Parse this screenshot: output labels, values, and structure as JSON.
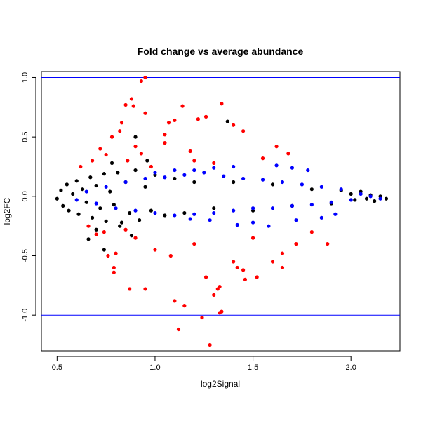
{
  "chart_data": {
    "type": "scatter",
    "title": "Fold change vs average abundance",
    "xlabel": "log2Signal",
    "ylabel": "log2FC",
    "xlim": [
      0.42,
      2.25
    ],
    "ylim": [
      -1.3,
      1.05
    ],
    "xticks": [
      {
        "value": 0.5,
        "label": "0.5"
      },
      {
        "value": 1.0,
        "label": "1.0"
      },
      {
        "value": 1.5,
        "label": "1.5"
      },
      {
        "value": 2.0,
        "label": "2.0"
      }
    ],
    "yticks": [
      {
        "value": -1.0,
        "label": "-1.0"
      },
      {
        "value": -0.5,
        "label": "-0.5"
      },
      {
        "value": 0.0,
        "label": "0.0"
      },
      {
        "value": 0.5,
        "label": "0.5"
      },
      {
        "value": 1.0,
        "label": "1.0"
      }
    ],
    "reference_lines": [
      {
        "axis": "y",
        "value": 1.0,
        "color": "#0000ff"
      },
      {
        "axis": "y",
        "value": -1.0,
        "color": "#0000ff"
      }
    ],
    "grid": false,
    "legend": "none",
    "series": [
      {
        "color": "#000000",
        "points": [
          [
            0.5,
            -0.02
          ],
          [
            0.52,
            0.05
          ],
          [
            0.53,
            -0.08
          ],
          [
            0.55,
            0.1
          ],
          [
            0.56,
            -0.12
          ],
          [
            0.58,
            0.02
          ],
          [
            0.6,
            0.13
          ],
          [
            0.61,
            -0.15
          ],
          [
            0.63,
            0.06
          ],
          [
            0.65,
            -0.05
          ],
          [
            0.67,
            0.16
          ],
          [
            0.68,
            -0.18
          ],
          [
            0.7,
            0.09
          ],
          [
            0.72,
            -0.1
          ],
          [
            0.74,
            0.19
          ],
          [
            0.75,
            -0.21
          ],
          [
            0.77,
            0.04
          ],
          [
            0.79,
            -0.07
          ],
          [
            0.81,
            0.2
          ],
          [
            0.83,
            -0.22
          ],
          [
            0.85,
            0.12
          ],
          [
            0.87,
            -0.14
          ],
          [
            0.9,
            0.22
          ],
          [
            0.92,
            -0.2
          ],
          [
            0.95,
            0.08
          ],
          [
            0.98,
            -0.12
          ],
          [
            1.0,
            0.18
          ],
          [
            1.05,
            -0.16
          ],
          [
            1.1,
            0.15
          ],
          [
            1.15,
            -0.14
          ],
          [
            1.2,
            0.12
          ],
          [
            1.3,
            -0.1
          ],
          [
            1.37,
            0.63
          ],
          [
            1.4,
            0.12
          ],
          [
            1.5,
            -0.12
          ],
          [
            1.6,
            0.1
          ],
          [
            1.7,
            -0.08
          ],
          [
            1.8,
            0.06
          ],
          [
            1.9,
            -0.06
          ],
          [
            1.95,
            0.05
          ],
          [
            2.0,
            0.02
          ],
          [
            2.02,
            -0.03
          ],
          [
            2.05,
            0.04
          ],
          [
            2.08,
            -0.02
          ],
          [
            2.1,
            0.01
          ],
          [
            2.12,
            -0.04
          ],
          [
            2.15,
            0.0
          ],
          [
            2.18,
            -0.02
          ],
          [
            0.7,
            -0.28
          ],
          [
            0.78,
            0.28
          ],
          [
            0.88,
            -0.33
          ],
          [
            0.96,
            0.3
          ],
          [
            0.74,
            -0.45
          ],
          [
            0.66,
            -0.36
          ],
          [
            0.9,
            0.5
          ],
          [
            0.82,
            -0.25
          ]
        ]
      },
      {
        "color": "#ff0000",
        "points": [
          [
            0.95,
            1.0
          ],
          [
            0.93,
            0.97
          ],
          [
            0.88,
            0.82
          ],
          [
            0.85,
            0.77
          ],
          [
            0.89,
            0.76
          ],
          [
            0.95,
            0.7
          ],
          [
            1.14,
            0.76
          ],
          [
            1.22,
            0.65
          ],
          [
            1.26,
            0.67
          ],
          [
            1.34,
            0.78
          ],
          [
            1.1,
            0.64
          ],
          [
            1.07,
            0.62
          ],
          [
            0.83,
            0.62
          ],
          [
            0.78,
            0.5
          ],
          [
            0.82,
            0.55
          ],
          [
            0.72,
            0.4
          ],
          [
            0.68,
            0.3
          ],
          [
            0.75,
            0.35
          ],
          [
            0.9,
            0.42
          ],
          [
            1.05,
            0.45
          ],
          [
            1.18,
            0.38
          ],
          [
            1.45,
            0.55
          ],
          [
            1.55,
            0.32
          ],
          [
            1.62,
            0.42
          ],
          [
            1.68,
            0.36
          ],
          [
            1.3,
            0.28
          ],
          [
            1.2,
            0.3
          ],
          [
            0.98,
            0.25
          ],
          [
            0.62,
            0.25
          ],
          [
            0.66,
            -0.25
          ],
          [
            0.7,
            -0.32
          ],
          [
            0.74,
            -0.3
          ],
          [
            0.76,
            -0.5
          ],
          [
            0.8,
            -0.48
          ],
          [
            0.79,
            -0.6
          ],
          [
            0.79,
            -0.64
          ],
          [
            0.87,
            -0.78
          ],
          [
            0.95,
            -0.78
          ],
          [
            1.0,
            -0.45
          ],
          [
            1.08,
            -0.5
          ],
          [
            1.1,
            -0.88
          ],
          [
            1.15,
            -0.92
          ],
          [
            1.12,
            -1.12
          ],
          [
            1.24,
            -1.02
          ],
          [
            1.28,
            -1.25
          ],
          [
            1.33,
            -0.98
          ],
          [
            1.34,
            -0.97
          ],
          [
            1.3,
            -0.83
          ],
          [
            1.32,
            -0.78
          ],
          [
            1.33,
            -0.76
          ],
          [
            1.26,
            -0.68
          ],
          [
            1.4,
            -0.55
          ],
          [
            1.42,
            -0.6
          ],
          [
            1.45,
            -0.62
          ],
          [
            1.46,
            -0.7
          ],
          [
            1.52,
            -0.68
          ],
          [
            1.6,
            -0.55
          ],
          [
            1.65,
            -0.6
          ],
          [
            1.65,
            -0.48
          ],
          [
            1.72,
            -0.4
          ],
          [
            1.8,
            -0.3
          ],
          [
            1.88,
            -0.4
          ],
          [
            1.5,
            -0.35
          ],
          [
            1.2,
            -0.4
          ],
          [
            0.9,
            -0.35
          ],
          [
            0.85,
            -0.28
          ],
          [
            1.4,
            0.6
          ],
          [
            1.05,
            0.52
          ],
          [
            0.93,
            0.36
          ],
          [
            0.86,
            0.3
          ]
        ]
      },
      {
        "color": "#0000ff",
        "points": [
          [
            0.6,
            -0.03
          ],
          [
            0.65,
            0.04
          ],
          [
            0.7,
            -0.06
          ],
          [
            0.75,
            0.08
          ],
          [
            0.8,
            -0.1
          ],
          [
            0.85,
            0.12
          ],
          [
            0.9,
            -0.12
          ],
          [
            0.95,
            0.15
          ],
          [
            1.0,
            -0.14
          ],
          [
            1.05,
            0.16
          ],
          [
            1.1,
            -0.16
          ],
          [
            1.15,
            0.18
          ],
          [
            1.2,
            -0.15
          ],
          [
            1.25,
            0.2
          ],
          [
            1.3,
            -0.14
          ],
          [
            1.35,
            0.17
          ],
          [
            1.4,
            -0.12
          ],
          [
            1.45,
            0.15
          ],
          [
            1.5,
            -0.1
          ],
          [
            1.55,
            0.14
          ],
          [
            1.6,
            -0.1
          ],
          [
            1.65,
            0.12
          ],
          [
            1.7,
            -0.08
          ],
          [
            1.75,
            0.1
          ],
          [
            1.8,
            -0.07
          ],
          [
            1.85,
            0.08
          ],
          [
            1.9,
            -0.05
          ],
          [
            1.95,
            0.06
          ],
          [
            2.0,
            -0.03
          ],
          [
            2.05,
            0.02
          ],
          [
            2.1,
            0.0
          ],
          [
            2.15,
            -0.02
          ],
          [
            1.62,
            0.26
          ],
          [
            1.7,
            0.24
          ],
          [
            1.78,
            0.22
          ],
          [
            1.58,
            -0.25
          ],
          [
            1.72,
            -0.2
          ],
          [
            1.85,
            -0.18
          ],
          [
            1.92,
            -0.15
          ],
          [
            1.4,
            0.25
          ],
          [
            1.3,
            0.24
          ],
          [
            1.2,
            0.22
          ],
          [
            1.1,
            0.22
          ],
          [
            1.0,
            0.2
          ],
          [
            1.5,
            -0.22
          ],
          [
            1.42,
            -0.24
          ],
          [
            1.28,
            -0.2
          ],
          [
            1.18,
            -0.19
          ]
        ]
      }
    ]
  }
}
